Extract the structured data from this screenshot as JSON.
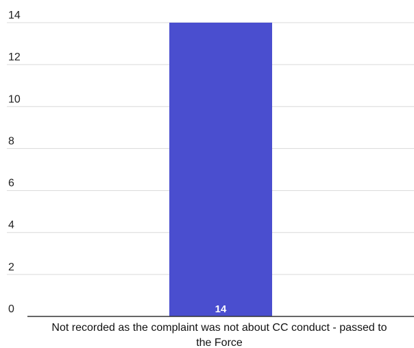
{
  "chart_data": {
    "type": "bar",
    "categories": [
      "Not recorded as the complaint was not about CC conduct - passed to the Force"
    ],
    "category_label_lines": [
      [
        "Not recorded as the complaint was not about CC conduct - passed to",
        "the Force"
      ]
    ],
    "values": [
      14
    ],
    "data_labels": [
      "14"
    ],
    "title": "",
    "xlabel": "",
    "ylabel": "",
    "ylim": [
      0,
      14
    ],
    "yticks": [
      0,
      2,
      4,
      6,
      8,
      10,
      12,
      14
    ],
    "grid": true,
    "legend": "none",
    "bar_color": "#4a4ecf"
  }
}
